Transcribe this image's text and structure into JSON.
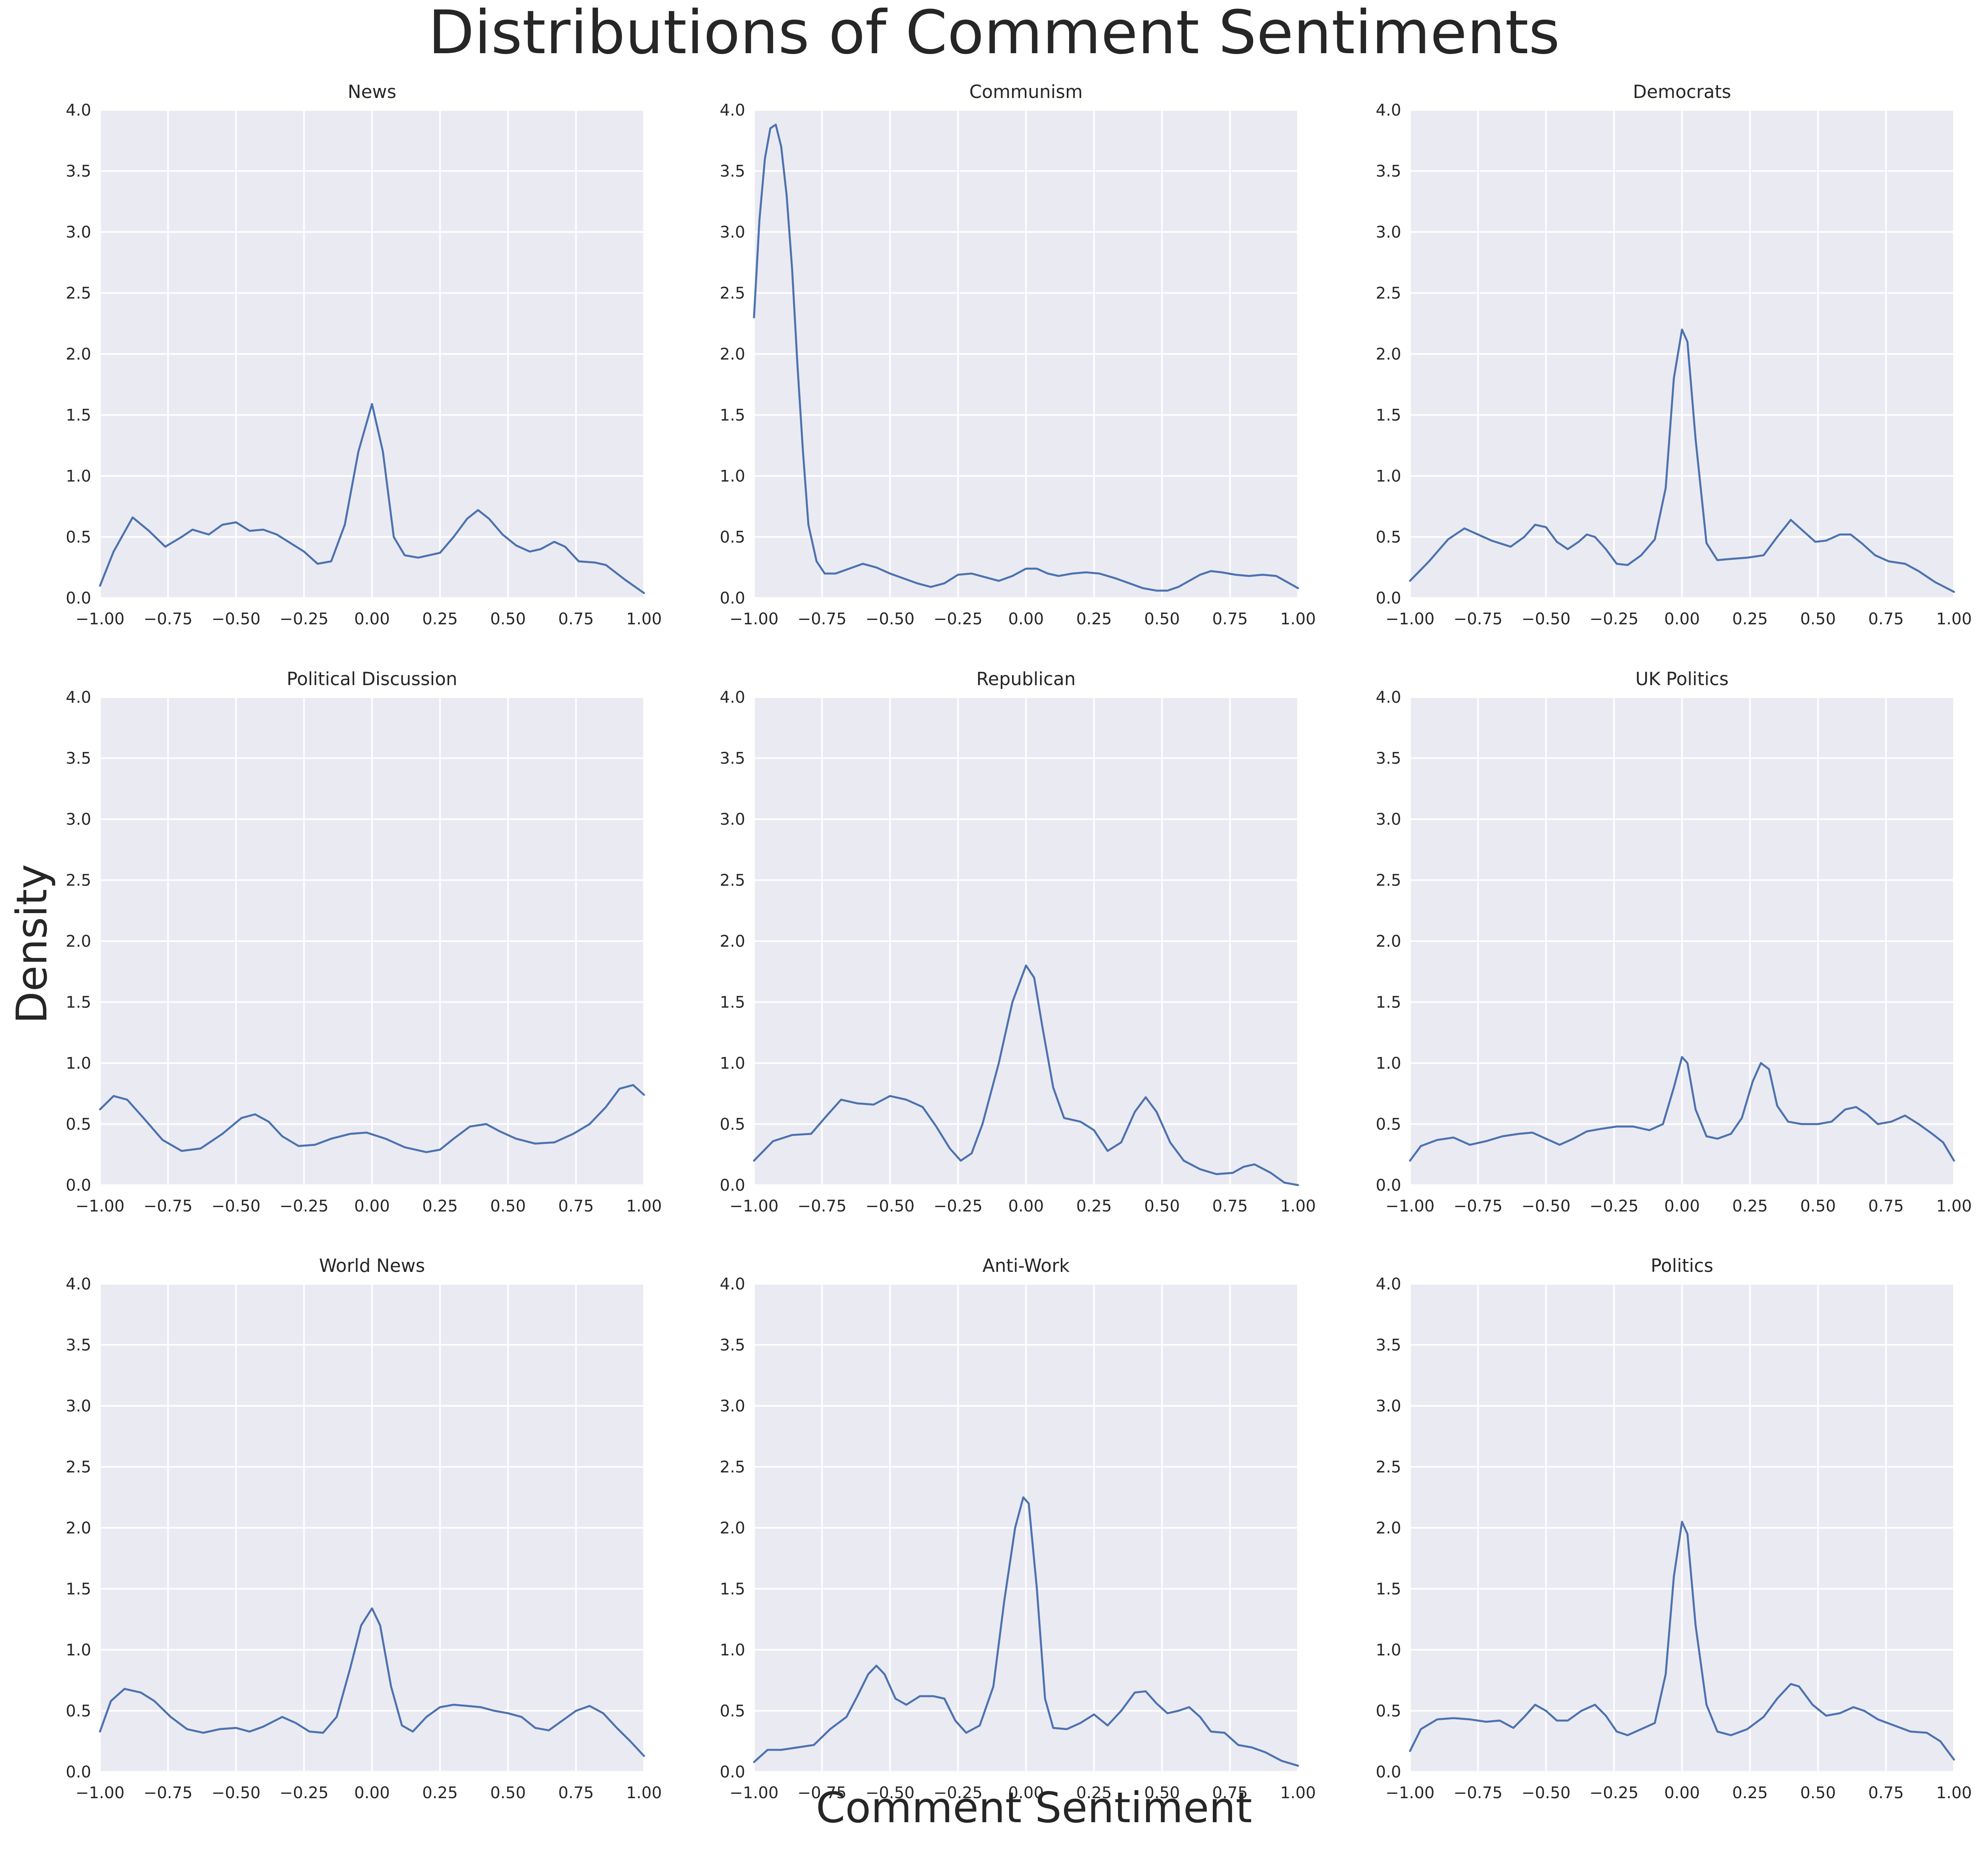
{
  "figure": {
    "title": "Distributions of Comment Sentiments",
    "xlabel": "Comment Sentiment",
    "ylabel": "Density",
    "line_color": "#4c72b0",
    "panel_bg": "#eaeaf2",
    "grid_color": "#ffffff"
  },
  "chart_data": [
    {
      "type": "line",
      "title": "News",
      "xlim": [
        -1,
        1
      ],
      "ylim": [
        0,
        4
      ],
      "grid": true,
      "xticks": [
        "−1.00",
        "−0.75",
        "−0.50",
        "−0.25",
        "0.00",
        "0.25",
        "0.50",
        "0.75",
        "1.00"
      ],
      "yticks": [
        "0.0",
        "0.5",
        "1.0",
        "1.5",
        "2.0",
        "2.5",
        "3.0",
        "3.5",
        "4.0"
      ],
      "x": [
        -1.0,
        -0.95,
        -0.88,
        -0.82,
        -0.76,
        -0.7,
        -0.66,
        -0.6,
        -0.55,
        -0.5,
        -0.45,
        -0.4,
        -0.35,
        -0.3,
        -0.25,
        -0.2,
        -0.15,
        -0.1,
        -0.05,
        0.0,
        0.04,
        0.08,
        0.12,
        0.17,
        0.25,
        0.3,
        0.35,
        0.39,
        0.43,
        0.48,
        0.53,
        0.58,
        0.62,
        0.67,
        0.71,
        0.76,
        0.82,
        0.86,
        0.93,
        1.0
      ],
      "y": [
        0.1,
        0.38,
        0.66,
        0.55,
        0.42,
        0.5,
        0.56,
        0.52,
        0.6,
        0.62,
        0.55,
        0.56,
        0.52,
        0.45,
        0.38,
        0.28,
        0.3,
        0.6,
        1.2,
        1.59,
        1.2,
        0.5,
        0.35,
        0.33,
        0.37,
        0.5,
        0.65,
        0.72,
        0.65,
        0.52,
        0.43,
        0.38,
        0.4,
        0.46,
        0.42,
        0.3,
        0.29,
        0.27,
        0.15,
        0.04
      ]
    },
    {
      "type": "line",
      "title": "Communism",
      "xlim": [
        -1,
        1
      ],
      "ylim": [
        0,
        4
      ],
      "grid": true,
      "xticks": [
        "−1.00",
        "−0.75",
        "−0.50",
        "−0.25",
        "0.00",
        "0.25",
        "0.50",
        "0.75",
        "1.00"
      ],
      "yticks": [
        "0.0",
        "0.5",
        "1.0",
        "1.5",
        "2.0",
        "2.5",
        "3.0",
        "3.5",
        "4.0"
      ],
      "x": [
        -1.0,
        -0.98,
        -0.96,
        -0.94,
        -0.92,
        -0.9,
        -0.88,
        -0.86,
        -0.84,
        -0.82,
        -0.8,
        -0.77,
        -0.74,
        -0.7,
        -0.65,
        -0.6,
        -0.55,
        -0.5,
        -0.45,
        -0.4,
        -0.35,
        -0.3,
        -0.25,
        -0.2,
        -0.15,
        -0.1,
        -0.05,
        0.0,
        0.04,
        0.08,
        0.12,
        0.17,
        0.22,
        0.27,
        0.33,
        0.38,
        0.43,
        0.48,
        0.52,
        0.56,
        0.6,
        0.64,
        0.68,
        0.72,
        0.77,
        0.82,
        0.87,
        0.92,
        0.96,
        1.0
      ],
      "y": [
        2.3,
        3.1,
        3.6,
        3.85,
        3.88,
        3.7,
        3.3,
        2.7,
        1.9,
        1.2,
        0.6,
        0.3,
        0.2,
        0.2,
        0.24,
        0.28,
        0.25,
        0.2,
        0.16,
        0.12,
        0.09,
        0.12,
        0.19,
        0.2,
        0.17,
        0.14,
        0.18,
        0.24,
        0.24,
        0.2,
        0.18,
        0.2,
        0.21,
        0.2,
        0.16,
        0.12,
        0.08,
        0.06,
        0.06,
        0.09,
        0.14,
        0.19,
        0.22,
        0.21,
        0.19,
        0.18,
        0.19,
        0.18,
        0.13,
        0.08
      ]
    },
    {
      "type": "line",
      "title": "Democrats",
      "xlim": [
        -1,
        1
      ],
      "ylim": [
        0,
        4
      ],
      "grid": true,
      "xticks": [
        "−1.00",
        "−0.75",
        "−0.50",
        "−0.25",
        "0.00",
        "0.25",
        "0.50",
        "0.75",
        "1.00"
      ],
      "yticks": [
        "0.0",
        "0.5",
        "1.0",
        "1.5",
        "2.0",
        "2.5",
        "3.0",
        "3.5",
        "4.0"
      ],
      "x": [
        -1.0,
        -0.93,
        -0.86,
        -0.8,
        -0.76,
        -0.7,
        -0.63,
        -0.58,
        -0.54,
        -0.5,
        -0.46,
        -0.42,
        -0.38,
        -0.35,
        -0.32,
        -0.28,
        -0.24,
        -0.2,
        -0.15,
        -0.1,
        -0.06,
        -0.03,
        0.0,
        0.02,
        0.05,
        0.09,
        0.13,
        0.18,
        0.24,
        0.3,
        0.35,
        0.4,
        0.44,
        0.49,
        0.53,
        0.58,
        0.62,
        0.66,
        0.71,
        0.76,
        0.82,
        0.87,
        0.93,
        1.0
      ],
      "y": [
        0.14,
        0.3,
        0.48,
        0.57,
        0.53,
        0.47,
        0.42,
        0.5,
        0.6,
        0.58,
        0.46,
        0.4,
        0.46,
        0.52,
        0.5,
        0.4,
        0.28,
        0.27,
        0.35,
        0.48,
        0.9,
        1.8,
        2.2,
        2.1,
        1.3,
        0.45,
        0.31,
        0.32,
        0.33,
        0.35,
        0.5,
        0.64,
        0.56,
        0.46,
        0.47,
        0.52,
        0.52,
        0.45,
        0.35,
        0.3,
        0.28,
        0.22,
        0.13,
        0.05
      ]
    },
    {
      "type": "line",
      "title": "Political Discussion",
      "xlim": [
        -1,
        1
      ],
      "ylim": [
        0,
        4
      ],
      "grid": true,
      "xticks": [
        "−1.00",
        "−0.75",
        "−0.50",
        "−0.25",
        "0.00",
        "0.25",
        "0.50",
        "0.75",
        "1.00"
      ],
      "yticks": [
        "0.0",
        "0.5",
        "1.0",
        "1.5",
        "2.0",
        "2.5",
        "3.0",
        "3.5",
        "4.0"
      ],
      "x": [
        -1.0,
        -0.95,
        -0.9,
        -0.84,
        -0.77,
        -0.7,
        -0.63,
        -0.55,
        -0.48,
        -0.43,
        -0.38,
        -0.33,
        -0.27,
        -0.21,
        -0.15,
        -0.08,
        -0.02,
        0.05,
        0.12,
        0.2,
        0.25,
        0.3,
        0.36,
        0.42,
        0.47,
        0.53,
        0.6,
        0.67,
        0.74,
        0.8,
        0.86,
        0.91,
        0.96,
        1.0
      ],
      "y": [
        0.62,
        0.73,
        0.7,
        0.55,
        0.37,
        0.28,
        0.3,
        0.42,
        0.55,
        0.58,
        0.52,
        0.4,
        0.32,
        0.33,
        0.38,
        0.42,
        0.43,
        0.38,
        0.31,
        0.27,
        0.29,
        0.38,
        0.48,
        0.5,
        0.44,
        0.38,
        0.34,
        0.35,
        0.42,
        0.5,
        0.64,
        0.79,
        0.82,
        0.74
      ]
    },
    {
      "type": "line",
      "title": "Republican",
      "xlim": [
        -1,
        1
      ],
      "ylim": [
        0,
        4
      ],
      "grid": true,
      "xticks": [
        "−1.00",
        "−0.75",
        "−0.50",
        "−0.25",
        "0.00",
        "0.25",
        "0.50",
        "0.75",
        "1.00"
      ],
      "yticks": [
        "0.0",
        "0.5",
        "1.0",
        "1.5",
        "2.0",
        "2.5",
        "3.0",
        "3.5",
        "4.0"
      ],
      "x": [
        -1.0,
        -0.93,
        -0.86,
        -0.79,
        -0.74,
        -0.68,
        -0.62,
        -0.56,
        -0.5,
        -0.44,
        -0.38,
        -0.33,
        -0.28,
        -0.24,
        -0.2,
        -0.16,
        -0.1,
        -0.05,
        0.0,
        0.03,
        0.06,
        0.1,
        0.14,
        0.2,
        0.25,
        0.3,
        0.35,
        0.4,
        0.44,
        0.48,
        0.53,
        0.58,
        0.64,
        0.7,
        0.76,
        0.8,
        0.84,
        0.9,
        0.95,
        1.0
      ],
      "y": [
        0.2,
        0.36,
        0.41,
        0.42,
        0.55,
        0.7,
        0.67,
        0.66,
        0.73,
        0.7,
        0.64,
        0.48,
        0.3,
        0.2,
        0.26,
        0.5,
        1.0,
        1.5,
        1.8,
        1.7,
        1.3,
        0.8,
        0.55,
        0.52,
        0.45,
        0.28,
        0.35,
        0.6,
        0.72,
        0.6,
        0.35,
        0.2,
        0.13,
        0.09,
        0.1,
        0.15,
        0.17,
        0.1,
        0.02,
        0.0
      ]
    },
    {
      "type": "line",
      "title": "UK Politics",
      "xlim": [
        -1,
        1
      ],
      "ylim": [
        0,
        4
      ],
      "grid": true,
      "xticks": [
        "−1.00",
        "−0.75",
        "−0.50",
        "−0.25",
        "0.00",
        "0.25",
        "0.50",
        "0.75",
        "1.00"
      ],
      "yticks": [
        "0.0",
        "0.5",
        "1.0",
        "1.5",
        "2.0",
        "2.5",
        "3.0",
        "3.5",
        "4.0"
      ],
      "x": [
        -1.0,
        -0.96,
        -0.9,
        -0.84,
        -0.78,
        -0.72,
        -0.66,
        -0.6,
        -0.55,
        -0.5,
        -0.45,
        -0.4,
        -0.35,
        -0.3,
        -0.24,
        -0.18,
        -0.12,
        -0.07,
        -0.03,
        0.0,
        0.02,
        0.05,
        0.09,
        0.13,
        0.18,
        0.22,
        0.26,
        0.29,
        0.32,
        0.35,
        0.39,
        0.44,
        0.5,
        0.55,
        0.6,
        0.64,
        0.68,
        0.72,
        0.77,
        0.82,
        0.87,
        0.92,
        0.96,
        1.0
      ],
      "y": [
        0.2,
        0.32,
        0.37,
        0.39,
        0.33,
        0.36,
        0.4,
        0.42,
        0.43,
        0.38,
        0.33,
        0.38,
        0.44,
        0.46,
        0.48,
        0.48,
        0.45,
        0.5,
        0.8,
        1.05,
        1.0,
        0.62,
        0.4,
        0.38,
        0.42,
        0.55,
        0.85,
        1.0,
        0.95,
        0.65,
        0.52,
        0.5,
        0.5,
        0.52,
        0.62,
        0.64,
        0.58,
        0.5,
        0.52,
        0.57,
        0.5,
        0.42,
        0.35,
        0.2
      ]
    },
    {
      "type": "line",
      "title": "World News",
      "xlim": [
        -1,
        1
      ],
      "ylim": [
        0,
        4
      ],
      "grid": true,
      "xticks": [
        "−1.00",
        "−0.75",
        "−0.50",
        "−0.25",
        "0.00",
        "0.25",
        "0.50",
        "0.75",
        "1.00"
      ],
      "yticks": [
        "0.0",
        "0.5",
        "1.0",
        "1.5",
        "2.0",
        "2.5",
        "3.0",
        "3.5",
        "4.0"
      ],
      "x": [
        -1.0,
        -0.96,
        -0.91,
        -0.85,
        -0.8,
        -0.74,
        -0.68,
        -0.62,
        -0.56,
        -0.5,
        -0.45,
        -0.4,
        -0.33,
        -0.28,
        -0.23,
        -0.18,
        -0.13,
        -0.08,
        -0.04,
        0.0,
        0.03,
        0.07,
        0.11,
        0.15,
        0.2,
        0.25,
        0.3,
        0.35,
        0.4,
        0.45,
        0.5,
        0.55,
        0.6,
        0.65,
        0.7,
        0.75,
        0.8,
        0.85,
        0.9,
        0.95,
        1.0
      ],
      "y": [
        0.33,
        0.58,
        0.68,
        0.65,
        0.58,
        0.45,
        0.35,
        0.32,
        0.35,
        0.36,
        0.33,
        0.37,
        0.45,
        0.4,
        0.33,
        0.32,
        0.45,
        0.85,
        1.2,
        1.34,
        1.2,
        0.7,
        0.38,
        0.33,
        0.45,
        0.53,
        0.55,
        0.54,
        0.53,
        0.5,
        0.48,
        0.45,
        0.36,
        0.34,
        0.42,
        0.5,
        0.54,
        0.48,
        0.36,
        0.25,
        0.13
      ]
    },
    {
      "type": "line",
      "title": "Anti-Work",
      "xlim": [
        -1,
        1
      ],
      "ylim": [
        0,
        4
      ],
      "grid": true,
      "xticks": [
        "−1.00",
        "−0.75",
        "−0.50",
        "−0.25",
        "0.00",
        "0.25",
        "0.50",
        "0.75",
        "1.00"
      ],
      "yticks": [
        "0.0",
        "0.5",
        "1.0",
        "1.5",
        "2.0",
        "2.5",
        "3.0",
        "3.5",
        "4.0"
      ],
      "x": [
        -1.0,
        -0.95,
        -0.9,
        -0.84,
        -0.78,
        -0.72,
        -0.66,
        -0.62,
        -0.58,
        -0.55,
        -0.52,
        -0.48,
        -0.44,
        -0.39,
        -0.34,
        -0.3,
        -0.26,
        -0.22,
        -0.17,
        -0.12,
        -0.08,
        -0.04,
        -0.01,
        0.01,
        0.04,
        0.07,
        0.1,
        0.15,
        0.2,
        0.25,
        0.3,
        0.35,
        0.4,
        0.44,
        0.48,
        0.52,
        0.56,
        0.6,
        0.64,
        0.68,
        0.73,
        0.78,
        0.83,
        0.88,
        0.94,
        1.0
      ],
      "y": [
        0.08,
        0.18,
        0.18,
        0.2,
        0.22,
        0.35,
        0.45,
        0.62,
        0.8,
        0.87,
        0.8,
        0.6,
        0.55,
        0.62,
        0.62,
        0.6,
        0.42,
        0.32,
        0.38,
        0.7,
        1.4,
        2.0,
        2.25,
        2.2,
        1.5,
        0.6,
        0.36,
        0.35,
        0.4,
        0.47,
        0.38,
        0.5,
        0.65,
        0.66,
        0.56,
        0.48,
        0.5,
        0.53,
        0.45,
        0.33,
        0.32,
        0.22,
        0.2,
        0.16,
        0.09,
        0.05
      ]
    },
    {
      "type": "line",
      "title": "Politics",
      "xlim": [
        -1,
        1
      ],
      "ylim": [
        0,
        4
      ],
      "grid": true,
      "xticks": [
        "−1.00",
        "−0.75",
        "−0.50",
        "−0.25",
        "0.00",
        "0.25",
        "0.50",
        "0.75",
        "1.00"
      ],
      "yticks": [
        "0.0",
        "0.5",
        "1.0",
        "1.5",
        "2.0",
        "2.5",
        "3.0",
        "3.5",
        "4.0"
      ],
      "x": [
        -1.0,
        -0.96,
        -0.9,
        -0.84,
        -0.78,
        -0.72,
        -0.67,
        -0.62,
        -0.58,
        -0.54,
        -0.5,
        -0.46,
        -0.42,
        -0.37,
        -0.32,
        -0.28,
        -0.24,
        -0.2,
        -0.15,
        -0.1,
        -0.06,
        -0.03,
        0.0,
        0.02,
        0.05,
        0.09,
        0.13,
        0.18,
        0.24,
        0.3,
        0.35,
        0.4,
        0.43,
        0.48,
        0.53,
        0.58,
        0.63,
        0.67,
        0.72,
        0.78,
        0.84,
        0.9,
        0.95,
        1.0
      ],
      "y": [
        0.17,
        0.35,
        0.43,
        0.44,
        0.43,
        0.41,
        0.42,
        0.36,
        0.45,
        0.55,
        0.5,
        0.42,
        0.42,
        0.5,
        0.55,
        0.46,
        0.33,
        0.3,
        0.35,
        0.4,
        0.8,
        1.6,
        2.05,
        1.95,
        1.2,
        0.55,
        0.33,
        0.3,
        0.35,
        0.45,
        0.6,
        0.72,
        0.7,
        0.55,
        0.46,
        0.48,
        0.53,
        0.5,
        0.43,
        0.38,
        0.33,
        0.32,
        0.25,
        0.1
      ]
    }
  ]
}
